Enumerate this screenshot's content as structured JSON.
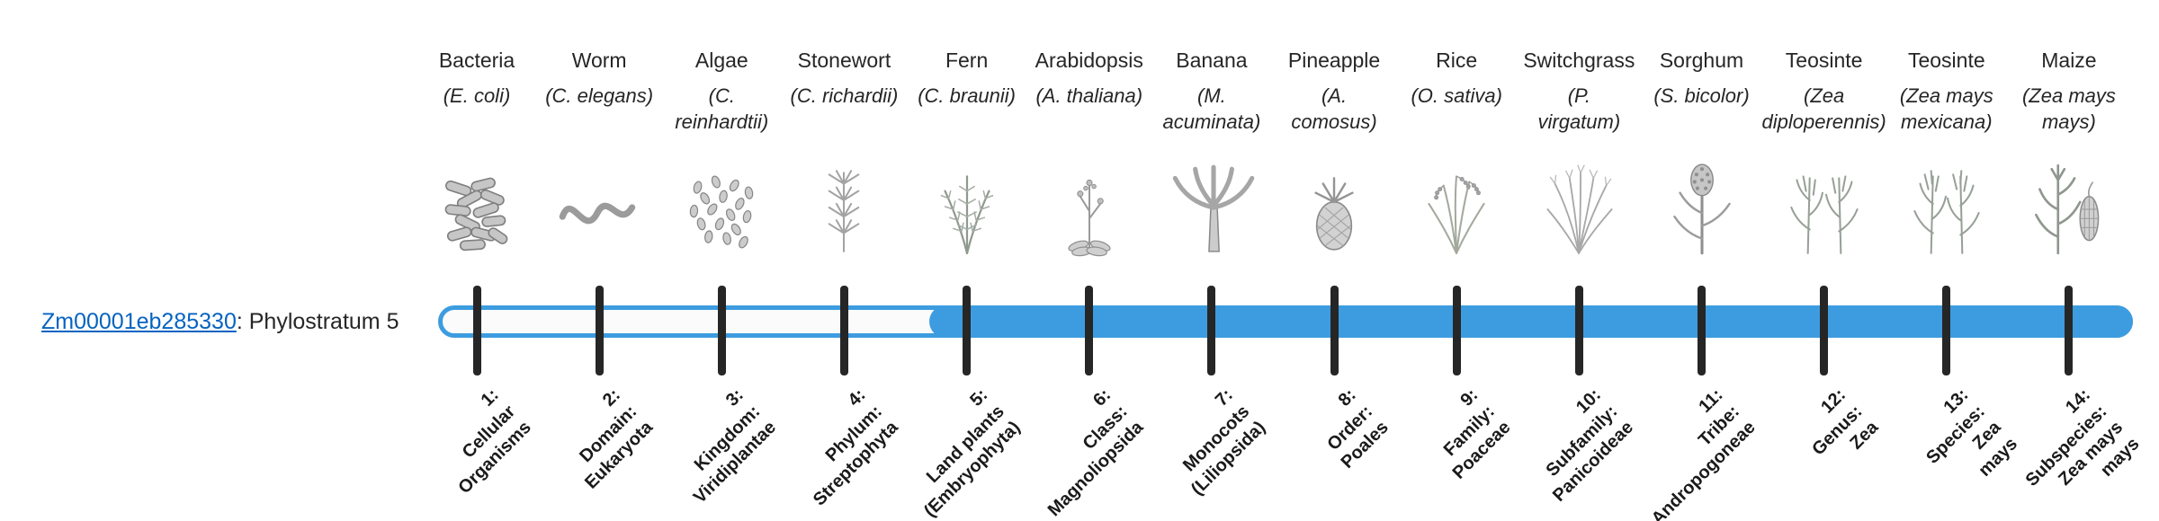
{
  "gene": {
    "link_text": "Zm00001eb285330",
    "suffix_text": ": Phylostratum 5",
    "phylostratum": 5
  },
  "colors": {
    "bar_blue": "#3d9ce0",
    "bar_track_fill": "#fbfbfb",
    "tick": "#262626",
    "link": "#0563C1",
    "text": "#262626"
  },
  "organisms": [
    {
      "common": "Bacteria",
      "latin_lines": [
        "(E. coli)"
      ],
      "icon": "bacteria",
      "stratum_lines": [
        "1:",
        "Cellular",
        "Organisms"
      ]
    },
    {
      "common": "Worm",
      "latin_lines": [
        "(C. elegans)"
      ],
      "icon": "worm",
      "stratum_lines": [
        "2:",
        "Domain:",
        "Eukaryota"
      ]
    },
    {
      "common": "Algae",
      "latin_lines": [
        "(C.",
        "reinhardtii)"
      ],
      "icon": "algae",
      "stratum_lines": [
        "3:",
        "Kingdom:",
        "Viridiplantae"
      ]
    },
    {
      "common": "Stonewort",
      "latin_lines": [
        "(C. richardii)"
      ],
      "icon": "stonewort",
      "stratum_lines": [
        "4:",
        "Phylum:",
        "Streptophyta"
      ]
    },
    {
      "common": "Fern",
      "latin_lines": [
        "(C. braunii)"
      ],
      "icon": "fern",
      "stratum_lines": [
        "5:",
        "Land plants",
        "(Embryophyta)"
      ]
    },
    {
      "common": "Arabidopsis",
      "latin_lines": [
        "(A. thaliana)"
      ],
      "icon": "arabidopsis",
      "stratum_lines": [
        "6:",
        "Class:",
        "Magnoliopsida"
      ]
    },
    {
      "common": "Banana",
      "latin_lines": [
        "(M.",
        "acuminata)"
      ],
      "icon": "banana",
      "stratum_lines": [
        "7:",
        "Monocots",
        "(Liliopsida)"
      ]
    },
    {
      "common": "Pineapple",
      "latin_lines": [
        "(A.",
        "comosus)"
      ],
      "icon": "pineapple",
      "stratum_lines": [
        "8:",
        "Order:",
        "Poales"
      ]
    },
    {
      "common": "Rice",
      "latin_lines": [
        "(O. sativa)"
      ],
      "icon": "rice",
      "stratum_lines": [
        "9:",
        "Family:",
        "Poaceae"
      ]
    },
    {
      "common": "Switchgrass",
      "latin_lines": [
        "(P.",
        "virgatum)"
      ],
      "icon": "switchgrass",
      "stratum_lines": [
        "10:",
        "Subfamily:",
        "Panicoideae"
      ]
    },
    {
      "common": "Sorghum",
      "latin_lines": [
        "(S. bicolor)"
      ],
      "icon": "sorghum",
      "stratum_lines": [
        "11:",
        "Tribe:",
        "Andropogoneae"
      ]
    },
    {
      "common": "Teosinte",
      "latin_lines": [
        "(Zea",
        "diploperennis)"
      ],
      "icon": "teosinte",
      "stratum_lines": [
        "12:",
        "Genus:",
        "Zea"
      ]
    },
    {
      "common": "Teosinte",
      "latin_lines": [
        "(Zea mays",
        "mexicana)"
      ],
      "icon": "teosinte2",
      "stratum_lines": [
        "13:",
        "Species:",
        "Zea",
        "mays"
      ]
    },
    {
      "common": "Maize",
      "latin_lines": [
        "(Zea mays",
        "mays)"
      ],
      "icon": "maize",
      "stratum_lines": [
        "14:",
        "Subspecies:",
        "Zea mays",
        "mays"
      ]
    }
  ]
}
